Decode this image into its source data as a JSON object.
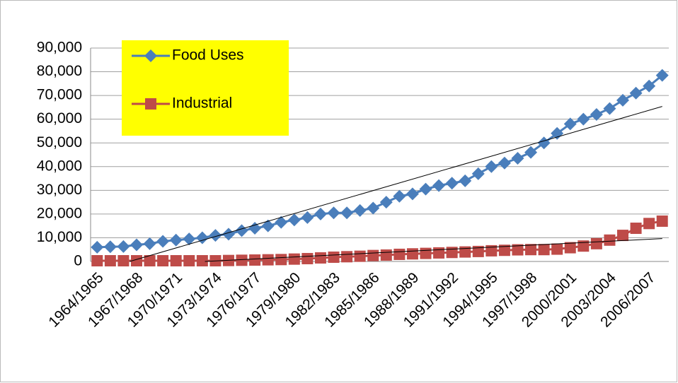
{
  "chart_data": {
    "type": "line",
    "categories": [
      "1964/1965",
      null,
      null,
      "1967/1968",
      null,
      null,
      "1970/1971",
      null,
      null,
      "1973/1974",
      null,
      null,
      "1976/1977",
      null,
      null,
      "1979/1980",
      null,
      null,
      "1982/1983",
      null,
      null,
      "1985/1986",
      null,
      null,
      "1988/1989",
      null,
      null,
      "1991/1992",
      null,
      null,
      "1994/1995",
      null,
      null,
      "1997/1998",
      null,
      null,
      "2000/2001",
      null,
      null,
      "2003/2004",
      null,
      null,
      "2006/2007",
      null
    ],
    "series": [
      {
        "name": "Food Uses",
        "color": "#4a7ebb",
        "marker": "diamond",
        "values": [
          6000,
          6200,
          6300,
          7000,
          7500,
          8500,
          9000,
          9500,
          10000,
          11000,
          11500,
          13000,
          14000,
          15000,
          16500,
          17500,
          18500,
          20000,
          20500,
          20500,
          21500,
          22500,
          25000,
          27500,
          28500,
          30500,
          32000,
          33000,
          34000,
          37000,
          40000,
          41500,
          43500,
          46000,
          50000,
          54000,
          58000,
          60000,
          62000,
          64500,
          68000,
          71000,
          74000,
          78500
        ]
      },
      {
        "name": "Industrial",
        "color": "#be4b48",
        "marker": "square",
        "values": [
          300,
          300,
          300,
          300,
          300,
          300,
          300,
          300,
          300,
          300,
          400,
          500,
          600,
          700,
          800,
          1000,
          1200,
          1500,
          1800,
          2000,
          2200,
          2500,
          2700,
          3000,
          3200,
          3400,
          3600,
          3800,
          4000,
          4200,
          4500,
          4700,
          4900,
          5000,
          5000,
          5200,
          5800,
          6500,
          7500,
          9000,
          11000,
          14000,
          16000,
          17000
        ]
      }
    ],
    "ylim": [
      0,
      90000
    ],
    "yticks": [
      0,
      {
        "value": 10000,
        "label": "10,000"
      },
      {
        "value": 20000,
        "label": "20,000"
      },
      {
        "value": 30000,
        "label": "30,000"
      },
      {
        "value": 40000,
        "label": "40,000"
      },
      {
        "value": 50000,
        "label": "50,000"
      },
      {
        "value": 60000,
        "label": "60,000"
      },
      {
        "value": 70000,
        "label": "70,000"
      },
      {
        "value": 80000,
        "label": "80,000"
      },
      {
        "value": 90000,
        "label": "90,000"
      }
    ],
    "grid": true,
    "trendline": true,
    "legend_position": "upper-left",
    "legend_background": "#ffff00"
  }
}
